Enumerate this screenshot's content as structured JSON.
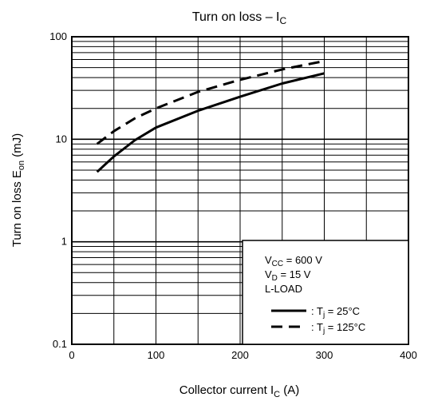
{
  "chart_data": {
    "type": "line",
    "title": "Turn on loss – I",
    "title_sub": "C",
    "xlabel": "Collector current  I",
    "xlabel_sub": "C",
    "xlabel_unit": "(A)",
    "ylabel": "Turn on loss   E",
    "ylabel_sub": "on",
    "ylabel_unit": "(mJ)",
    "xlim": [
      0,
      400
    ],
    "ylim": [
      0.1,
      100
    ],
    "yscale": "log",
    "grid": true,
    "x_ticks": [
      0,
      100,
      200,
      300,
      400
    ],
    "x_tick_labels": [
      "0",
      "100",
      "200",
      "300",
      "400"
    ],
    "y_ticks": [
      0.1,
      1,
      10,
      100
    ],
    "y_tick_labels": [
      "0.1",
      "1",
      "10",
      "100"
    ],
    "legend_placement": "bottom-right",
    "conditions": [
      {
        "main": "V",
        "sub": "CC",
        "rest": " = 600 V"
      },
      {
        "main": "V",
        "sub": "D",
        "rest": " = 15 V"
      },
      {
        "main": "L-LOAD",
        "sub": "",
        "rest": ""
      }
    ],
    "series": [
      {
        "name_prefix": ": T",
        "name_sub": "j",
        "name_rest": " = 25°C",
        "style": "solid",
        "x": [
          30,
          50,
          75,
          100,
          150,
          200,
          250,
          300
        ],
        "y": [
          4.8,
          6.8,
          9.8,
          13,
          19,
          26,
          35,
          44
        ]
      },
      {
        "name_prefix": ": T",
        "name_sub": "j",
        "name_rest": " = 125°C",
        "style": "dashed",
        "x": [
          30,
          50,
          75,
          100,
          150,
          200,
          250,
          300
        ],
        "y": [
          9,
          12,
          16,
          20,
          29,
          38,
          48,
          58
        ]
      }
    ]
  }
}
